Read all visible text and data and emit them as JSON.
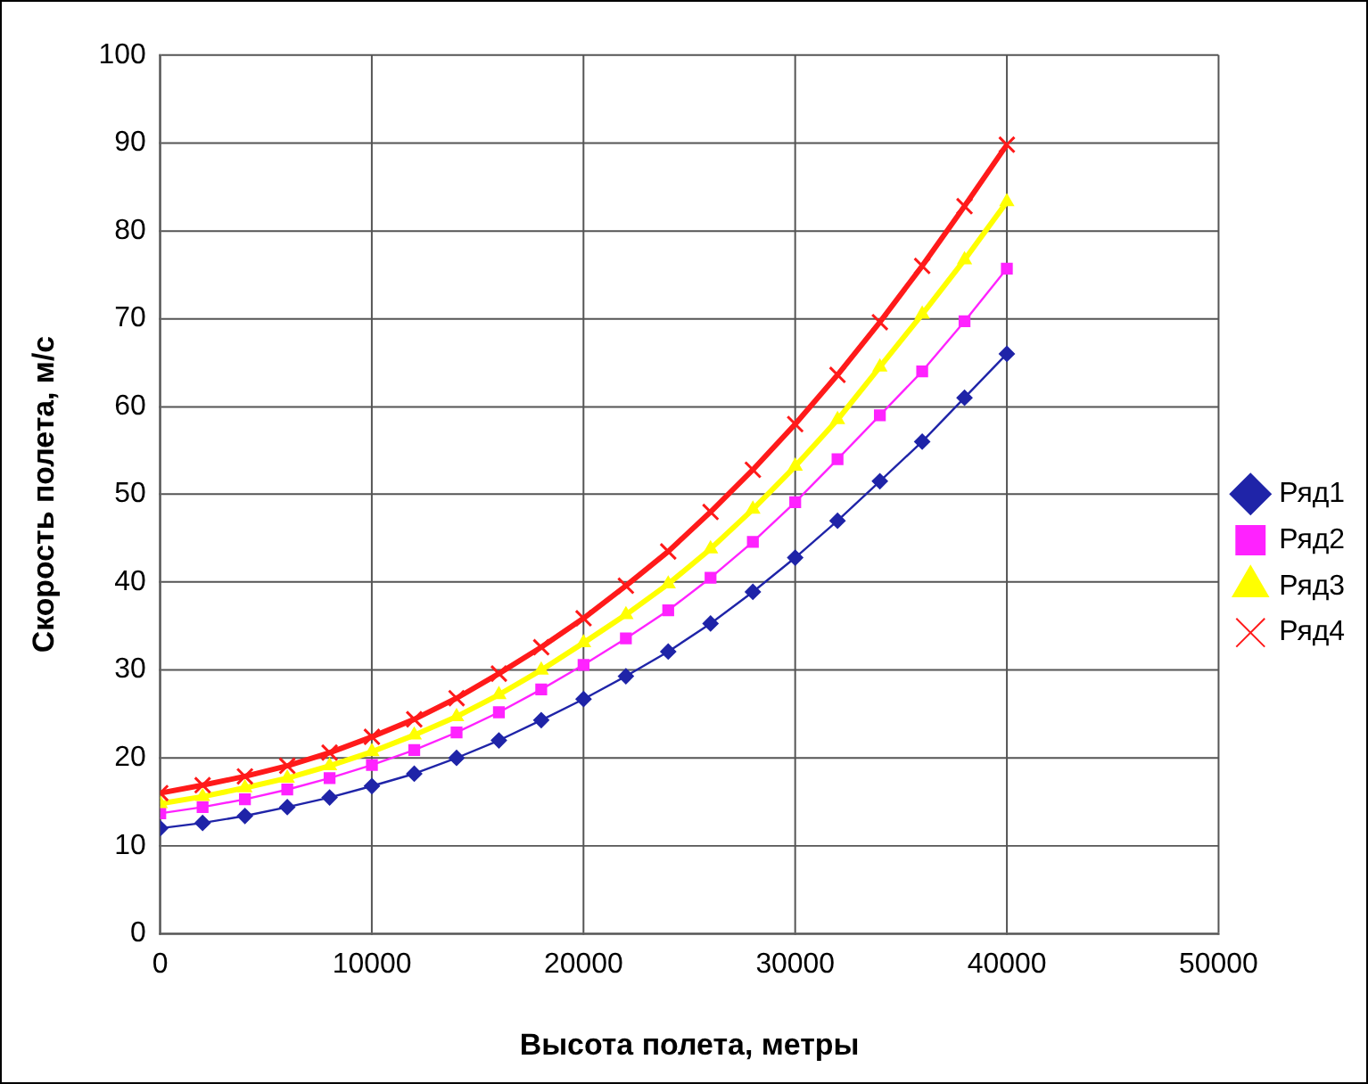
{
  "chart_data": {
    "type": "line",
    "xlabel": "Высота полета, метры",
    "ylabel": "Скорость полета, м/с",
    "x": [
      0,
      2000,
      4000,
      6000,
      8000,
      10000,
      12000,
      14000,
      16000,
      18000,
      20000,
      22000,
      24000,
      26000,
      28000,
      30000,
      32000,
      34000,
      36000,
      38000,
      40000
    ],
    "series": [
      {
        "name": "Ряд1",
        "color": "#1f24a8",
        "marker": "diamond",
        "values": [
          12,
          12.6,
          13.4,
          14.4,
          15.5,
          16.8,
          18.2,
          20,
          22,
          24.3,
          26.7,
          29.3,
          32.1,
          35.3,
          38.9,
          42.8,
          47,
          51.5,
          56,
          61,
          66
        ]
      },
      {
        "name": "Ряд2",
        "color": "#ff22ff",
        "marker": "square",
        "values": [
          13.7,
          14.4,
          15.3,
          16.4,
          17.7,
          19.2,
          20.9,
          22.9,
          25.2,
          27.8,
          30.6,
          33.6,
          36.8,
          40.5,
          44.6,
          49.1,
          54,
          59,
          64,
          69.7,
          75.7
        ]
      },
      {
        "name": "Ряд3",
        "color": "#ffff00",
        "marker": "triangle",
        "values": [
          14.8,
          15.6,
          16.6,
          17.7,
          19.1,
          20.7,
          22.6,
          24.7,
          27.2,
          30,
          33.1,
          36.3,
          39.8,
          43.8,
          48.3,
          53.2,
          58.5,
          64.5,
          70.5,
          76.7,
          83.3
        ]
      },
      {
        "name": "Ряд4",
        "color": "#ff1a1a",
        "marker": "cross",
        "values": [
          16,
          16.9,
          17.9,
          19.1,
          20.6,
          22.4,
          24.4,
          26.8,
          29.6,
          32.6,
          35.9,
          39.6,
          43.5,
          48,
          52.8,
          58,
          63.6,
          69.6,
          76,
          82.8,
          89.8
        ]
      }
    ],
    "xlim": [
      0,
      50000
    ],
    "xticks": [
      0,
      10000,
      20000,
      30000,
      40000,
      50000
    ],
    "ylim": [
      0,
      100
    ],
    "yticks": [
      0,
      10,
      20,
      30,
      40,
      50,
      60,
      70,
      80,
      90,
      100
    ],
    "grid": true,
    "legend": "right"
  }
}
